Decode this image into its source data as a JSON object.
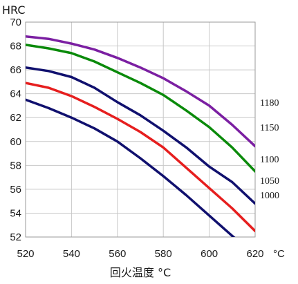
{
  "chart_data": {
    "type": "line",
    "title": "",
    "xlabel": "回火温度 °C",
    "ylabel": "HRC",
    "x_unit": "°C",
    "xlim": [
      520,
      620
    ],
    "ylim": [
      52,
      70
    ],
    "grid": true,
    "x_ticks": [
      520,
      540,
      560,
      580,
      600,
      620
    ],
    "y_ticks": [
      52,
      54,
      56,
      58,
      60,
      62,
      64,
      66,
      68,
      70
    ],
    "x": [
      520,
      530,
      540,
      550,
      560,
      570,
      580,
      590,
      600,
      610,
      620
    ],
    "series": [
      {
        "name": "1180",
        "color": "#7b1fa2",
        "values": [
          68.8,
          68.6,
          68.2,
          67.7,
          67.0,
          66.2,
          65.3,
          64.2,
          63.0,
          61.4,
          59.6
        ]
      },
      {
        "name": "1150",
        "color": "#0a8a0a",
        "values": [
          68.1,
          67.8,
          67.4,
          66.7,
          65.8,
          64.9,
          63.9,
          62.6,
          61.2,
          59.5,
          57.5
        ]
      },
      {
        "name": "1100",
        "color": "#10106e",
        "values": [
          66.2,
          65.9,
          65.4,
          64.5,
          63.3,
          62.2,
          60.9,
          59.5,
          57.9,
          56.6,
          54.8
        ]
      },
      {
        "name": "1050",
        "color": "#e61e1e",
        "values": [
          64.9,
          64.5,
          63.8,
          62.9,
          61.9,
          60.8,
          59.5,
          57.8,
          56.1,
          54.4,
          52.5
        ]
      },
      {
        "name": "1000",
        "color": "#10106e",
        "values": [
          63.5,
          62.8,
          62.0,
          61.1,
          60.0,
          58.6,
          57.1,
          55.5,
          53.8,
          52.1,
          50.5
        ]
      }
    ]
  }
}
